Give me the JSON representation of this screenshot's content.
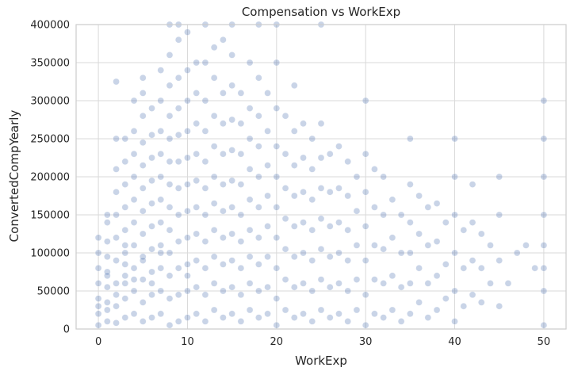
{
  "chart_data": {
    "type": "scatter",
    "title": "Compensation vs WorkExp",
    "xlabel": "WorkExp",
    "ylabel": "ConvertedCompYearly",
    "xlim": [
      -2.5,
      52.5
    ],
    "ylim": [
      0,
      400000
    ],
    "xticks": [
      0,
      10,
      20,
      30,
      40,
      50
    ],
    "yticks": [
      0,
      50000,
      100000,
      150000,
      200000,
      250000,
      300000,
      350000,
      400000
    ],
    "grid": true,
    "legend": "none",
    "color": "#4c72b0",
    "point_alpha": 0.3,
    "series": [
      {
        "x": [
          0,
          0,
          0,
          0,
          0,
          0,
          0,
          0,
          1,
          1,
          1,
          1,
          1,
          1,
          1,
          1,
          1,
          1,
          2,
          2,
          2,
          2,
          2,
          2,
          2,
          2,
          2,
          2,
          2,
          3,
          3,
          3,
          3,
          3,
          3,
          3,
          3,
          3,
          3,
          3,
          3,
          4,
          4,
          4,
          4,
          4,
          4,
          4,
          4,
          4,
          4,
          4,
          5,
          5,
          5,
          5,
          5,
          5,
          5,
          5,
          5,
          5,
          5,
          5,
          5,
          6,
          6,
          6,
          6,
          6,
          6,
          6,
          6,
          6,
          6,
          6,
          7,
          7,
          7,
          7,
          7,
          7,
          7,
          7,
          7,
          7,
          7,
          7,
          8,
          8,
          8,
          8,
          8,
          8,
          8,
          8,
          8,
          8,
          8,
          8,
          8,
          9,
          9,
          9,
          9,
          9,
          9,
          9,
          9,
          9,
          9,
          9,
          9,
          10,
          10,
          10,
          10,
          10,
          10,
          10,
          10,
          10,
          10,
          10,
          10,
          11,
          11,
          11,
          11,
          11,
          11,
          11,
          11,
          11,
          11,
          12,
          12,
          12,
          12,
          12,
          12,
          12,
          12,
          12,
          12,
          12,
          13,
          13,
          13,
          13,
          13,
          13,
          13,
          13,
          13,
          13,
          14,
          14,
          14,
          14,
          14,
          14,
          14,
          14,
          14,
          14,
          15,
          15,
          15,
          15,
          15,
          15,
          15,
          15,
          15,
          15,
          15,
          16,
          16,
          16,
          16,
          16,
          16,
          16,
          16,
          16,
          17,
          17,
          17,
          17,
          17,
          17,
          17,
          17,
          17,
          18,
          18,
          18,
          18,
          18,
          18,
          18,
          18,
          18,
          18,
          19,
          19,
          19,
          19,
          19,
          19,
          19,
          19,
          20,
          20,
          20,
          20,
          20,
          20,
          20,
          20,
          20,
          20,
          21,
          21,
          21,
          21,
          21,
          21,
          21,
          22,
          22,
          22,
          22,
          22,
          22,
          22,
          22,
          23,
          23,
          23,
          23,
          23,
          23,
          23,
          24,
          24,
          24,
          24,
          24,
          24,
          24,
          25,
          25,
          25,
          25,
          25,
          25,
          25,
          25,
          26,
          26,
          26,
          26,
          26,
          26,
          27,
          27,
          27,
          27,
          27,
          27,
          28,
          28,
          28,
          28,
          28,
          28,
          29,
          29,
          29,
          29,
          29,
          30,
          30,
          30,
          30,
          30,
          30,
          30,
          31,
          31,
          31,
          31,
          31,
          32,
          32,
          32,
          32,
          32,
          33,
          33,
          33,
          33,
          34,
          34,
          34,
          34,
          35,
          35,
          35,
          35,
          35,
          35,
          36,
          36,
          36,
          36,
          37,
          37,
          37,
          37,
          38,
          38,
          38,
          38,
          39,
          39,
          39,
          40,
          40,
          40,
          40,
          40,
          40,
          41,
          41,
          41,
          42,
          42,
          42,
          42,
          43,
          43,
          43,
          44,
          44,
          45,
          45,
          45,
          45,
          46,
          47,
          48,
          49,
          50,
          50,
          50,
          50,
          50,
          50,
          50,
          50
        ],
        "y": [
          5000,
          20000,
          40000,
          60000,
          80000,
          100000,
          120000,
          30000,
          10000,
          35000,
          55000,
          75000,
          95000,
          115000,
          140000,
          70000,
          25000,
          150000,
          8000,
          30000,
          60000,
          90000,
          120000,
          150000,
          180000,
          210000,
          250000,
          325000,
          45000,
          15000,
          40000,
          70000,
          100000,
          130000,
          160000,
          190000,
          220000,
          250000,
          85000,
          60000,
          110000,
          20000,
          50000,
          80000,
          110000,
          140000,
          170000,
          200000,
          230000,
          260000,
          300000,
          65000,
          10000,
          35000,
          65000,
          95000,
          125000,
          155000,
          185000,
          215000,
          245000,
          280000,
          310000,
          330000,
          90000,
          15000,
          45000,
          75000,
          105000,
          135000,
          165000,
          195000,
          225000,
          255000,
          290000,
          60000,
          20000,
          50000,
          80000,
          110000,
          140000,
          170000,
          200000,
          230000,
          260000,
          300000,
          340000,
          100000,
          5000,
          40000,
          70000,
          100000,
          130000,
          160000,
          190000,
          220000,
          250000,
          280000,
          320000,
          360000,
          400000,
          10000,
          45000,
          80000,
          115000,
          150000,
          185000,
          220000,
          255000,
          290000,
          330000,
          380000,
          400000,
          15000,
          50000,
          85000,
          120000,
          155000,
          190000,
          225000,
          260000,
          300000,
          340000,
          390000,
          70000,
          20000,
          55000,
          90000,
          125000,
          160000,
          195000,
          230000,
          270000,
          310000,
          350000,
          10000,
          45000,
          80000,
          115000,
          150000,
          185000,
          220000,
          260000,
          300000,
          350000,
          400000,
          25000,
          60000,
          95000,
          130000,
          165000,
          200000,
          240000,
          280000,
          330000,
          370000,
          15000,
          50000,
          85000,
          120000,
          155000,
          190000,
          230000,
          270000,
          310000,
          380000,
          20000,
          55000,
          90000,
          125000,
          160000,
          195000,
          235000,
          275000,
          320000,
          360000,
          400000,
          10000,
          45000,
          80000,
          115000,
          150000,
          190000,
          230000,
          270000,
          310000,
          25000,
          60000,
          95000,
          130000,
          170000,
          210000,
          250000,
          290000,
          350000,
          15000,
          50000,
          85000,
          120000,
          160000,
          200000,
          240000,
          280000,
          330000,
          400000,
          20000,
          55000,
          95000,
          135000,
          175000,
          215000,
          260000,
          310000,
          5000,
          40000,
          80000,
          120000,
          160000,
          200000,
          240000,
          290000,
          350000,
          400000,
          25000,
          65000,
          105000,
          145000,
          185000,
          230000,
          280000,
          15000,
          55000,
          95000,
          135000,
          175000,
          215000,
          260000,
          320000,
          20000,
          60000,
          100000,
          140000,
          180000,
          225000,
          270000,
          10000,
          50000,
          90000,
          130000,
          170000,
          210000,
          250000,
          25000,
          65000,
          105000,
          145000,
          185000,
          225000,
          270000,
          400000,
          15000,
          55000,
          95000,
          135000,
          180000,
          230000,
          20000,
          60000,
          100000,
          140000,
          185000,
          240000,
          10000,
          50000,
          90000,
          130000,
          175000,
          220000,
          25000,
          65000,
          110000,
          155000,
          200000,
          5000,
          45000,
          90000,
          135000,
          180000,
          230000,
          300000,
          20000,
          65000,
          110000,
          160000,
          210000,
          15000,
          60000,
          105000,
          150000,
          200000,
          25000,
          70000,
          120000,
          170000,
          10000,
          55000,
          100000,
          150000,
          20000,
          60000,
          100000,
          140000,
          190000,
          250000,
          35000,
          80000,
          125000,
          175000,
          15000,
          60000,
          110000,
          160000,
          25000,
          70000,
          115000,
          165000,
          40000,
          85000,
          140000,
          10000,
          50000,
          100000,
          150000,
          200000,
          250000,
          30000,
          80000,
          130000,
          45000,
          90000,
          140000,
          190000,
          35000,
          80000,
          125000,
          60000,
          110000,
          30000,
          90000,
          150000,
          200000,
          60000,
          100000,
          110000,
          80000,
          5000,
          50000,
          80000,
          110000,
          150000,
          200000,
          250000,
          300000
        ],
        "alpha": 0.3
      }
    ]
  }
}
